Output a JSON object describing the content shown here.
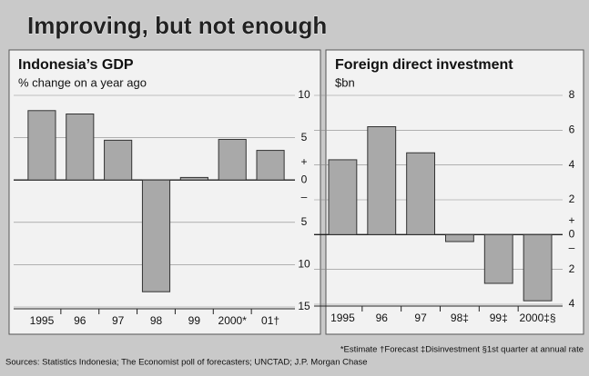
{
  "title": "Improving, but not enough",
  "chart_data": [
    {
      "type": "bar",
      "title": "Indonesia’s GDP",
      "subtitle": "% change on a year ago",
      "categories": [
        "1995",
        "96",
        "97",
        "98",
        "99",
        "2000*",
        "01†"
      ],
      "values": [
        8.2,
        7.8,
        4.7,
        -13.2,
        0.3,
        4.8,
        3.5
      ],
      "color": "#a9a9a9",
      "ylim": [
        -15,
        10
      ],
      "yticks": [
        {
          "value": -15,
          "label": "15"
        },
        {
          "value": -10,
          "label": "10"
        },
        {
          "value": -5,
          "label": "5"
        },
        0,
        5,
        10
      ],
      "positive_sign": "+",
      "negative_sign": "–",
      "grid": true
    },
    {
      "type": "bar",
      "title": "Foreign direct investment",
      "subtitle": "$bn",
      "categories": [
        "1995",
        "96",
        "97",
        "98‡",
        "99‡",
        "2000‡§"
      ],
      "values": [
        4.3,
        6.2,
        4.7,
        -0.4,
        -2.8,
        -3.8
      ],
      "color": "#a9a9a9",
      "ylim": [
        -4,
        8
      ],
      "yticks": [
        {
          "value": -4,
          "label": "4"
        },
        {
          "value": -2,
          "label": "2"
        },
        0,
        2,
        4,
        6,
        8
      ],
      "positive_sign": "+",
      "negative_sign": "–",
      "grid": true
    }
  ],
  "footnote": "*Estimate  †Forecast  ‡Disinvestment  §1st quarter at annual rate",
  "sources": "Sources: Statistics Indonesia; The Economist poll of forecasters; UNCTAD; J.P. Morgan Chase"
}
